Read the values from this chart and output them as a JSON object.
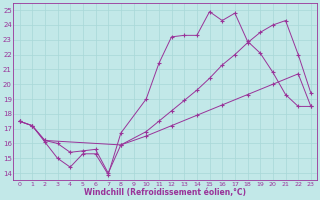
{
  "xlabel": "Windchill (Refroidissement éolien,°C)",
  "xlim": [
    -0.5,
    23.5
  ],
  "ylim": [
    13.5,
    25.5
  ],
  "xticks": [
    0,
    1,
    2,
    3,
    4,
    5,
    6,
    7,
    8,
    9,
    10,
    11,
    12,
    13,
    14,
    15,
    16,
    17,
    18,
    19,
    20,
    21,
    22,
    23
  ],
  "yticks": [
    14,
    15,
    16,
    17,
    18,
    19,
    20,
    21,
    22,
    23,
    24,
    25
  ],
  "bg_color": "#c2e8e8",
  "line_color": "#993399",
  "grid_color": "#a8d8d8",
  "line1_x": [
    0,
    1,
    2,
    3,
    4,
    5,
    6,
    7,
    8,
    10,
    11,
    12,
    13,
    14,
    15,
    16,
    17,
    18,
    19,
    20,
    21,
    22,
    23
  ],
  "line1_y": [
    17.5,
    17.2,
    16.1,
    15.0,
    14.4,
    15.3,
    15.3,
    13.9,
    16.7,
    19.0,
    21.4,
    23.2,
    23.3,
    23.3,
    24.9,
    24.3,
    24.8,
    22.9,
    22.1,
    20.8,
    19.3,
    18.5,
    18.5
  ],
  "line2_x": [
    0,
    1,
    2,
    3,
    4,
    5,
    6,
    7,
    8,
    10,
    11,
    12,
    13,
    14,
    15,
    16,
    17,
    18,
    19,
    20,
    21,
    22,
    23
  ],
  "line2_y": [
    17.5,
    17.2,
    16.2,
    16.0,
    15.4,
    15.5,
    15.6,
    14.0,
    15.9,
    16.8,
    17.5,
    18.2,
    18.9,
    19.6,
    20.4,
    21.3,
    22.0,
    22.8,
    23.5,
    24.0,
    24.3,
    22.0,
    19.4
  ],
  "line3_x": [
    0,
    1,
    2,
    8,
    10,
    12,
    14,
    16,
    18,
    20,
    22,
    23
  ],
  "line3_y": [
    17.5,
    17.2,
    16.2,
    15.9,
    16.5,
    17.2,
    17.9,
    18.6,
    19.3,
    20.0,
    20.7,
    18.5
  ]
}
